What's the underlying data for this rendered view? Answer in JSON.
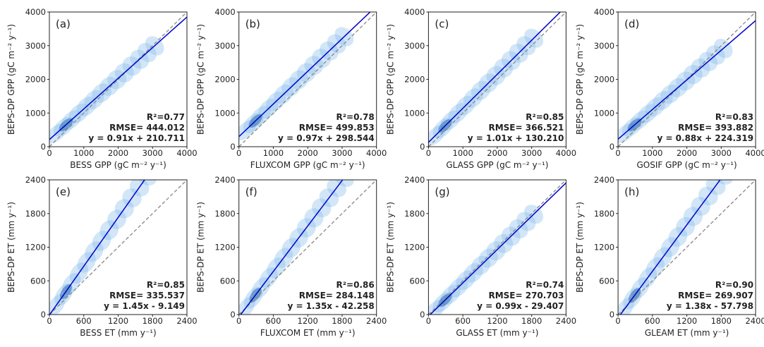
{
  "chart_data": [
    {
      "type": "scatter",
      "panel_label": "(a)",
      "xlabel": "BESS GPP (gC m⁻² y⁻¹)",
      "ylabel": "BEPS-DP GPP (gC m⁻² y⁻¹)",
      "xlim": [
        0,
        4000
      ],
      "ylim": [
        0,
        4000
      ],
      "xticks": [
        0,
        1000,
        2000,
        3000,
        4000
      ],
      "yticks": [
        0,
        1000,
        2000,
        3000,
        4000
      ],
      "fit": {
        "slope": 0.91,
        "intercept": 210.711,
        "color": "#0000cc"
      },
      "annotations": [
        "R²=0.77",
        "RMSE= 444.012",
        "y = 0.91x + 210.711"
      ]
    },
    {
      "type": "scatter",
      "panel_label": "(b)",
      "xlabel": "FLUXCOM GPP (gC m⁻² y⁻¹)",
      "ylabel": "BEPS-DP GPP (gC m⁻² y⁻¹)",
      "xlim": [
        0,
        4000
      ],
      "ylim": [
        0,
        4000
      ],
      "xticks": [
        0,
        1000,
        2000,
        3000,
        4000
      ],
      "yticks": [
        0,
        1000,
        2000,
        3000,
        4000
      ],
      "fit": {
        "slope": 0.97,
        "intercept": 298.544,
        "color": "#0000cc"
      },
      "annotations": [
        "R²=0.78",
        "RMSE= 499.853",
        "y = 0.97x + 298.544"
      ]
    },
    {
      "type": "scatter",
      "panel_label": "(c)",
      "xlabel": "GLASS GPP (gC m⁻² y⁻¹)",
      "ylabel": "BEPS-DP GPP (gC m⁻² y⁻¹)",
      "xlim": [
        0,
        4000
      ],
      "ylim": [
        0,
        4000
      ],
      "xticks": [
        0,
        1000,
        2000,
        3000,
        4000
      ],
      "yticks": [
        0,
        1000,
        2000,
        3000,
        4000
      ],
      "fit": {
        "slope": 1.01,
        "intercept": 130.21,
        "color": "#0000cc"
      },
      "annotations": [
        "R²=0.85",
        "RMSE= 366.521",
        "y = 1.01x + 130.210"
      ]
    },
    {
      "type": "scatter",
      "panel_label": "(d)",
      "xlabel": "GOSIF GPP (gC m⁻² y⁻¹)",
      "ylabel": "BEPS-DP GPP (gC m⁻² y⁻¹)",
      "xlim": [
        0,
        4000
      ],
      "ylim": [
        0,
        4000
      ],
      "xticks": [
        0,
        1000,
        2000,
        3000,
        4000
      ],
      "yticks": [
        0,
        1000,
        2000,
        3000,
        4000
      ],
      "fit": {
        "slope": 0.88,
        "intercept": 224.319,
        "color": "#0000cc"
      },
      "annotations": [
        "R²=0.83",
        "RMSE= 393.882",
        "y = 0.88x + 224.319"
      ]
    },
    {
      "type": "scatter",
      "panel_label": "(e)",
      "xlabel": "BESS ET (mm y⁻¹)",
      "ylabel": "BEPS-DP ET (mm y⁻¹)",
      "xlim": [
        0,
        2400
      ],
      "ylim": [
        0,
        2400
      ],
      "xticks": [
        0,
        600,
        1200,
        1800,
        2400
      ],
      "yticks": [
        0,
        600,
        1200,
        1800,
        2400
      ],
      "fit": {
        "slope": 1.45,
        "intercept": -9.149,
        "color": "#0000cc"
      },
      "annotations": [
        "R²=0.85",
        "RMSE= 335.537",
        "y = 1.45x - 9.149"
      ]
    },
    {
      "type": "scatter",
      "panel_label": "(f)",
      "xlabel": "FLUXCOM ET (mm y⁻¹)",
      "ylabel": "BEPS-DP ET (mm y⁻¹)",
      "xlim": [
        0,
        2400
      ],
      "ylim": [
        0,
        2400
      ],
      "xticks": [
        0,
        600,
        1200,
        1800,
        2400
      ],
      "yticks": [
        0,
        600,
        1200,
        1800,
        2400
      ],
      "fit": {
        "slope": 1.35,
        "intercept": -42.258,
        "color": "#0000cc"
      },
      "annotations": [
        "R²=0.86",
        "RMSE= 284.148",
        "y = 1.35x - 42.258"
      ]
    },
    {
      "type": "scatter",
      "panel_label": "(g)",
      "xlabel": "GLASS ET (mm y⁻¹)",
      "ylabel": "BEPS-DP ET (mm y⁻¹)",
      "xlim": [
        0,
        2400
      ],
      "ylim": [
        0,
        2400
      ],
      "xticks": [
        0,
        600,
        1200,
        1800,
        2400
      ],
      "yticks": [
        0,
        600,
        1200,
        1800,
        2400
      ],
      "fit": {
        "slope": 0.99,
        "intercept": -29.407,
        "color": "#0000cc"
      },
      "annotations": [
        "R²=0.74",
        "RMSE= 270.703",
        "y = 0.99x - 29.407"
      ]
    },
    {
      "type": "scatter",
      "panel_label": "(h)",
      "xlabel": "GLEAM ET (mm y⁻¹)",
      "ylabel": "BEPS-DP ET (mm y⁻¹)",
      "xlim": [
        0,
        2400
      ],
      "ylim": [
        0,
        2400
      ],
      "xticks": [
        0,
        600,
        1200,
        1800,
        2400
      ],
      "yticks": [
        0,
        600,
        1200,
        1800,
        2400
      ],
      "fit": {
        "slope": 1.38,
        "intercept": -57.798,
        "color": "#0000cc"
      },
      "annotations": [
        "R²=0.90",
        "RMSE= 269.907",
        "y = 1.38x - 57.798"
      ]
    }
  ]
}
